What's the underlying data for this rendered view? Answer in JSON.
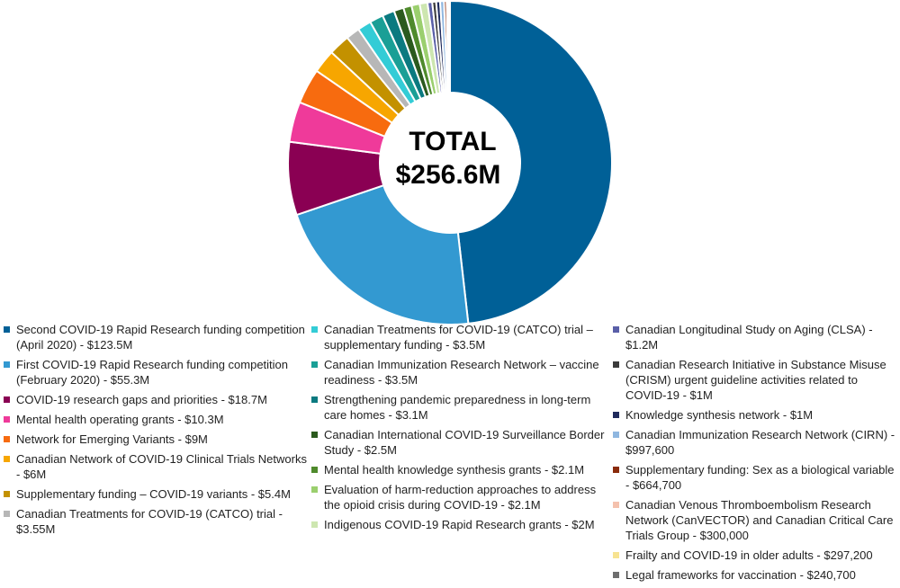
{
  "chart_data": {
    "type": "pie",
    "center_label": {
      "line1": "TOTAL",
      "line2": "$256.6M"
    },
    "slices": [
      {
        "label": "Second COVID-19 Rapid Research funding competition (April 2020) - $123.5M",
        "value": 123.5,
        "color": "#006097"
      },
      {
        "label": "First COVID-19 Rapid Research funding competition (February 2020) - $55.3M",
        "value": 55.3,
        "color": "#3399d1"
      },
      {
        "label": "COVID-19 research gaps and priorities - $18.7M",
        "value": 18.7,
        "color": "#8a0053"
      },
      {
        "label": "Mental health operating grants - $10.3M",
        "value": 10.3,
        "color": "#ef3a9a"
      },
      {
        "label": "Network for Emerging Variants - $9M",
        "value": 9.0,
        "color": "#f76b0f"
      },
      {
        "label": "Canadian Network of COVID-19 Clinical Trials Networks - $6M",
        "value": 6.0,
        "color": "#f7a600"
      },
      {
        "label": "Supplementary funding – COVID-19 variants - $5.4M",
        "value": 5.4,
        "color": "#c39100"
      },
      {
        "label": "Canadian Treatments for COVID-19 (CATCO) trial - $3.55M",
        "value": 3.55,
        "color": "#b7b7b7"
      },
      {
        "label": "Canadian Treatments for COVID-19 (CATCO) trial – supplementary funding - $3.5M",
        "value": 3.5,
        "color": "#33ccd6"
      },
      {
        "label": "Canadian Immunization Research Network – vaccine readiness - $3.5M",
        "value": 3.5,
        "color": "#1a9f96"
      },
      {
        "label": "Strengthening pandemic preparedness in long-term care homes - $3.1M",
        "value": 3.1,
        "color": "#0b7a80"
      },
      {
        "label": "Canadian International COVID-19 Surveillance Border Study - $2.5M",
        "value": 2.5,
        "color": "#2b5a1e"
      },
      {
        "label": "Mental health knowledge synthesis grants - $2.1M",
        "value": 2.1,
        "color": "#4f8a2c"
      },
      {
        "label": "Evaluation of harm-reduction approaches to address the opioid crisis during COVID-19 - $2.1M",
        "value": 2.1,
        "color": "#9bcf6e"
      },
      {
        "label": "Indigenous COVID-19 Rapid Research grants - $2M",
        "value": 2.0,
        "color": "#cde6b0"
      },
      {
        "label": "Canadian Longitudinal Study on Aging (CLSA) - $1.2M",
        "value": 1.2,
        "color": "#5a5fa8"
      },
      {
        "label": "Canadian Research Initiative in Substance Misuse (CRISM) urgent guideline activities related to COVID-19 - $1M",
        "value": 1.0,
        "color": "#3b3b3b"
      },
      {
        "label": "Knowledge synthesis network - $1M",
        "value": 1.0,
        "color": "#1f2a5c"
      },
      {
        "label": "Canadian Immunization Research Network (CIRN) - $997,600",
        "value": 0.9976,
        "color": "#8fb7e0"
      },
      {
        "label": "Supplementary funding: Sex as a biological variable - $664,700",
        "value": 0.6647,
        "color": "#8a2b0c"
      },
      {
        "label": "Canadian Venous Thromboembolism Research Network (CanVECTOR) and Canadian Critical Care Trials Group - $300,000",
        "value": 0.3,
        "color": "#f4c1ad"
      },
      {
        "label": "Frailty and COVID-19 in older adults - $297,200",
        "value": 0.2972,
        "color": "#f7e391"
      },
      {
        "label": "Legal frameworks for vaccination - $240,700",
        "value": 0.2407,
        "color": "#6e6e6e"
      }
    ]
  },
  "legend_columns": [
    {
      "items": [
        0,
        1,
        2,
        3,
        4,
        5,
        6,
        7
      ]
    },
    {
      "items": [
        8,
        9,
        10,
        11,
        12,
        13,
        14
      ]
    },
    {
      "items": [
        15,
        16,
        17,
        18,
        19,
        20,
        21,
        22
      ]
    }
  ]
}
